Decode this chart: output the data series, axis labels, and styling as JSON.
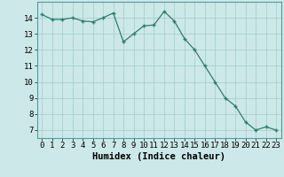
{
  "x": [
    0,
    1,
    2,
    3,
    4,
    5,
    6,
    7,
    8,
    9,
    10,
    11,
    12,
    13,
    14,
    15,
    16,
    17,
    18,
    19,
    20,
    21,
    22,
    23
  ],
  "y": [
    14.2,
    13.9,
    13.9,
    14.0,
    13.8,
    13.75,
    14.0,
    14.3,
    12.5,
    13.0,
    13.5,
    13.55,
    14.4,
    13.8,
    12.7,
    12.0,
    11.0,
    10.0,
    9.0,
    8.5,
    7.5,
    7.0,
    7.2,
    7.0
  ],
  "line_color": "#2e7d6e",
  "marker": "+",
  "bg_color": "#cce8e8",
  "grid_color": "#aacfcf",
  "xlabel": "Humidex (Indice chaleur)",
  "xlabel_fontsize": 7.5,
  "tick_fontsize": 6.5,
  "xlim": [
    -0.5,
    23.5
  ],
  "ylim": [
    6.5,
    15.0
  ],
  "yticks": [
    7,
    8,
    9,
    10,
    11,
    12,
    13,
    14
  ],
  "xticks": [
    0,
    1,
    2,
    3,
    4,
    5,
    6,
    7,
    8,
    9,
    10,
    11,
    12,
    13,
    14,
    15,
    16,
    17,
    18,
    19,
    20,
    21,
    22,
    23
  ]
}
